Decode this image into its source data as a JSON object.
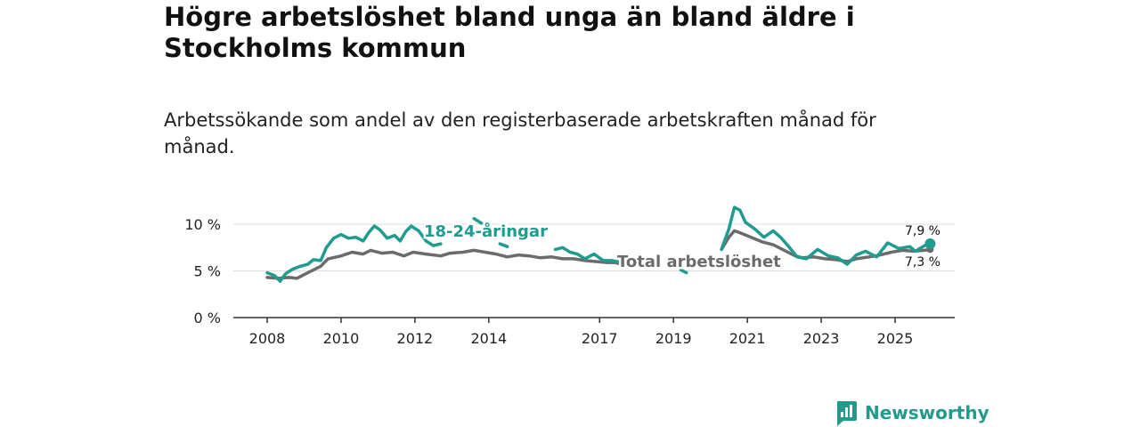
{
  "title": "Högre arbetslöshet bland unga än bland äldre i Stockholms kommun",
  "subtitle": "Arbetssökande som andel av den registerbaserade arbetskraften månad för månad.",
  "brand": {
    "name": "Newsworthy",
    "icon": "newsworthy-logo-icon",
    "color": "#239a8d"
  },
  "chart_data": {
    "type": "line",
    "title": "Högre arbetslöshet bland unga än bland äldre i Stockholms kommun",
    "subtitle": "Arbetssökande som andel av den registerbaserade arbetskraften månad för månad.",
    "xlabel": "",
    "ylabel": "",
    "xlim": [
      2007.1,
      2026.1
    ],
    "ylim": [
      0,
      10
    ],
    "x_ticks": [
      2008,
      2010,
      2012,
      2014,
      2017,
      2019,
      2021,
      2023,
      2025
    ],
    "x_tick_labels": [
      "2008",
      "2010",
      "2012",
      "2014",
      "2017",
      "2019",
      "2021",
      "2023",
      "2025"
    ],
    "y_ticks": [
      0,
      5,
      10
    ],
    "y_tick_labels": [
      "0 %",
      "5 %",
      "10 %"
    ],
    "grid": true,
    "series": [
      {
        "name": "18-24-åringar",
        "label": "18-24-åringar",
        "color": "#1f9c8f",
        "end_label": "7,9 %",
        "points": [
          [
            2008.0,
            4.8
          ],
          [
            2008.2,
            4.5
          ],
          [
            2008.35,
            3.9
          ],
          [
            2008.5,
            4.7
          ],
          [
            2008.7,
            5.2
          ],
          [
            2008.9,
            5.5
          ],
          [
            2009.1,
            5.7
          ],
          [
            2009.25,
            6.2
          ],
          [
            2009.45,
            6.1
          ],
          [
            2009.6,
            7.5
          ],
          [
            2009.8,
            8.5
          ],
          [
            2010.0,
            8.9
          ],
          [
            2010.2,
            8.5
          ],
          [
            2010.4,
            8.6
          ],
          [
            2010.6,
            8.2
          ],
          [
            2010.75,
            9.1
          ],
          [
            2010.9,
            9.8
          ],
          [
            2011.05,
            9.4
          ],
          [
            2011.25,
            8.5
          ],
          [
            2011.45,
            8.8
          ],
          [
            2011.6,
            8.2
          ],
          [
            2011.75,
            9.2
          ],
          [
            2011.9,
            9.8
          ],
          [
            2012.1,
            9.3
          ],
          [
            2012.3,
            8.2
          ],
          [
            2012.5,
            7.7
          ],
          [
            2012.7,
            7.9
          ],
          [
            null,
            null
          ],
          [
            2013.6,
            10.6
          ],
          [
            2013.8,
            10.1
          ],
          [
            null,
            null
          ],
          [
            2014.3,
            7.9
          ],
          [
            2014.5,
            7.6
          ],
          [
            null,
            null
          ],
          [
            2015.8,
            7.3
          ],
          [
            2016.0,
            7.5
          ],
          [
            2016.2,
            7.0
          ],
          [
            2016.4,
            6.8
          ],
          [
            2016.6,
            6.3
          ],
          [
            2016.85,
            6.8
          ],
          [
            2017.1,
            6.1
          ],
          [
            2017.35,
            6.1
          ],
          [
            2017.6,
            5.9
          ],
          [
            2017.65,
            5.7
          ],
          [
            null,
            null
          ],
          [
            2019.2,
            5.1
          ],
          [
            2019.35,
            4.8
          ],
          [
            null,
            null
          ],
          [
            2020.3,
            7.3
          ],
          [
            2020.5,
            9.5
          ],
          [
            2020.65,
            11.8
          ],
          [
            2020.8,
            11.5
          ],
          [
            2020.95,
            10.2
          ],
          [
            2021.2,
            9.5
          ],
          [
            2021.45,
            8.6
          ],
          [
            2021.7,
            9.3
          ],
          [
            2021.9,
            8.6
          ],
          [
            2022.1,
            7.7
          ],
          [
            2022.35,
            6.5
          ],
          [
            2022.6,
            6.3
          ],
          [
            2022.9,
            7.3
          ],
          [
            2023.2,
            6.6
          ],
          [
            2023.45,
            6.4
          ],
          [
            2023.7,
            5.7
          ],
          [
            2023.95,
            6.7
          ],
          [
            2024.2,
            7.1
          ],
          [
            2024.5,
            6.5
          ],
          [
            2024.8,
            8.0
          ],
          [
            2025.1,
            7.4
          ],
          [
            2025.4,
            7.6
          ],
          [
            2025.55,
            7.1
          ],
          [
            2025.8,
            7.7
          ],
          [
            2025.95,
            7.9
          ]
        ]
      },
      {
        "name": "Total arbetslöshet",
        "label": "Total arbetslöshet",
        "color": "#6b6b6b",
        "end_label": "7,3 %",
        "points": [
          [
            2008.0,
            4.3
          ],
          [
            2008.3,
            4.2
          ],
          [
            2008.6,
            4.3
          ],
          [
            2008.8,
            4.2
          ],
          [
            2009.0,
            4.6
          ],
          [
            2009.2,
            5.0
          ],
          [
            2009.45,
            5.5
          ],
          [
            2009.65,
            6.3
          ],
          [
            2010.0,
            6.6
          ],
          [
            2010.3,
            7.0
          ],
          [
            2010.6,
            6.8
          ],
          [
            2010.8,
            7.2
          ],
          [
            2011.1,
            6.9
          ],
          [
            2011.4,
            7.0
          ],
          [
            2011.7,
            6.6
          ],
          [
            2011.95,
            7.0
          ],
          [
            2012.3,
            6.8
          ],
          [
            2012.7,
            6.6
          ],
          [
            2012.95,
            6.9
          ],
          [
            2013.3,
            7.0
          ],
          [
            2013.6,
            7.2
          ],
          [
            2013.9,
            7.0
          ],
          [
            2014.2,
            6.8
          ],
          [
            2014.5,
            6.5
          ],
          [
            2014.8,
            6.7
          ],
          [
            2015.1,
            6.6
          ],
          [
            2015.4,
            6.4
          ],
          [
            2015.7,
            6.5
          ],
          [
            2016.0,
            6.3
          ],
          [
            2016.3,
            6.3
          ],
          [
            2016.6,
            6.1
          ],
          [
            2016.9,
            6.0
          ],
          [
            2017.2,
            5.9
          ],
          [
            2017.4,
            5.9
          ],
          [
            2017.5,
            5.8
          ],
          [
            null,
            null
          ],
          [
            2022.5,
            6.4
          ],
          [
            2022.8,
            6.5
          ],
          [
            2023.1,
            6.3
          ],
          [
            2023.4,
            6.2
          ],
          [
            2023.7,
            6.0
          ],
          [
            2023.95,
            6.3
          ],
          [
            2024.3,
            6.5
          ],
          [
            2024.6,
            6.7
          ],
          [
            2024.9,
            7.0
          ],
          [
            2025.2,
            7.2
          ],
          [
            2025.5,
            7.1
          ],
          [
            2025.8,
            7.2
          ],
          [
            2025.95,
            7.3
          ]
        ],
        "segment_2": [
          [
            2020.3,
            7.3
          ],
          [
            2020.5,
            8.6
          ],
          [
            2020.65,
            9.3
          ],
          [
            2020.85,
            9.0
          ],
          [
            2021.1,
            8.6
          ],
          [
            2021.4,
            8.1
          ],
          [
            2021.7,
            7.8
          ],
          [
            2022.0,
            7.2
          ],
          [
            2022.3,
            6.6
          ],
          [
            2022.5,
            6.4
          ]
        ]
      }
    ],
    "annotations": [
      {
        "text": "18-24-åringar",
        "series": "18-24-åringar"
      },
      {
        "text": "Total arbetslöshet",
        "series": "Total arbetslöshet"
      }
    ]
  }
}
